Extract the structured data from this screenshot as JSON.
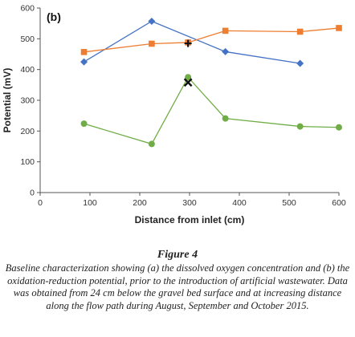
{
  "chart_data": {
    "type": "scatter",
    "panel_label": "(b)",
    "xlabel": "Distance from inlet (cm)",
    "ylabel": "Potential (mV)",
    "xlim": [
      0,
      600
    ],
    "ylim": [
      0,
      600
    ],
    "xticks": [
      0,
      100,
      200,
      300,
      400,
      500,
      600
    ],
    "yticks": [
      0,
      100,
      200,
      300,
      400,
      500,
      600
    ],
    "grid": false,
    "series": [
      {
        "marker": "diamond",
        "color": "#4472C4",
        "x": [
          88,
          224,
          372,
          522
        ],
        "y": [
          425,
          557,
          458,
          420
        ]
      },
      {
        "marker": "square",
        "color": "#ED7D31",
        "x": [
          88,
          224,
          297,
          372,
          522,
          600
        ],
        "y": [
          457,
          484,
          488,
          526,
          523,
          535
        ]
      },
      {
        "marker": "circle",
        "color": "#70AD47",
        "x": [
          88,
          224,
          297,
          372,
          522,
          600
        ],
        "y": [
          224,
          158,
          375,
          241,
          215,
          212
        ]
      }
    ],
    "extra_points": [
      {
        "marker": "plus",
        "color": "#111111",
        "x": 297,
        "y": 485
      },
      {
        "marker": "x",
        "color": "#111111",
        "x": 297,
        "y": 358
      }
    ]
  },
  "caption": {
    "title": "Figure 4",
    "text": "Baseline characterization showing (a) the dissolved oxygen concentration and (b) the oxidation-reduction potential, prior to the introduction of artificial wastewater. Data was obtained from 24 cm below the gravel bed surface and at increasing distance along the flow path during August, September and October 2015."
  }
}
